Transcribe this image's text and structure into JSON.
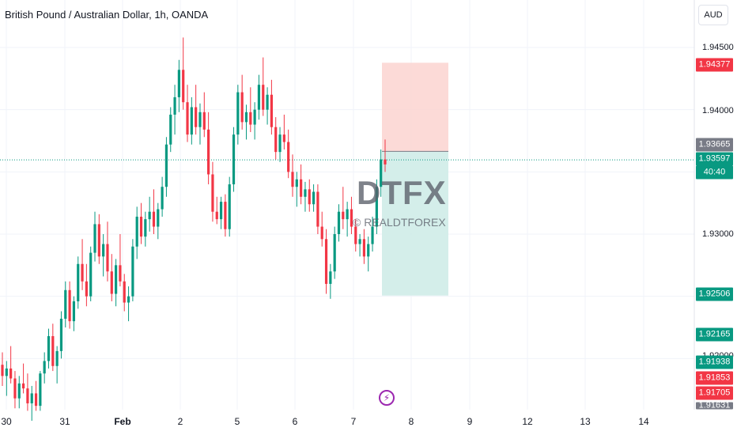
{
  "header": {
    "title": "British Pound / Australian Dollar, 1h, OANDA",
    "currency": "AUD"
  },
  "watermark": {
    "text": "DTFX",
    "subtext": "© REALDTFOREX"
  },
  "colors": {
    "up": "#089981",
    "down": "#f23645",
    "stop_zone": "#fbd4d0",
    "target_zone": "#cfece8",
    "current_line": "#089981",
    "accent_logo": "#9c27b0"
  },
  "price_axis": {
    "ticks": [
      "1.94500",
      "1.94000",
      "1.93000",
      "1.92000"
    ],
    "badges": [
      {
        "value": "1.94377",
        "color": "#f23645"
      },
      {
        "value": "1.93665",
        "color": "#787b86"
      },
      {
        "value": "1.93597",
        "color": "#089981"
      },
      {
        "value": "40:40",
        "color": "#089981"
      },
      {
        "value": "1.92506",
        "color": "#089981"
      },
      {
        "value": "1.92165",
        "color": "#089981"
      },
      {
        "value": "1.91938",
        "color": "#089981"
      },
      {
        "value": "1.91853",
        "color": "#f23645"
      },
      {
        "value": "1.91705",
        "color": "#f23645"
      },
      {
        "value": "1.91631",
        "color": "#787b86"
      }
    ]
  },
  "time_axis": {
    "ticks": [
      "30",
      "31",
      "Feb",
      "2",
      "5",
      "6",
      "7",
      "8",
      "9",
      "12",
      "13",
      "14"
    ]
  },
  "chart_data": {
    "type": "candlestick",
    "symbol": "GBPAUD",
    "timeframe": "1h",
    "ylim": [
      1.9145,
      1.9475
    ],
    "current_price": 1.93597,
    "position": {
      "side": "short",
      "entry": 1.93665,
      "stop": 1.94377,
      "target": 1.92506
    },
    "candles": [
      [
        1.9195,
        1.9205,
        1.9178,
        1.9186
      ],
      [
        1.9186,
        1.9198,
        1.917,
        1.9192
      ],
      [
        1.9192,
        1.921,
        1.918,
        1.9184
      ],
      [
        1.9184,
        1.919,
        1.916,
        1.9168
      ],
      [
        1.9168,
        1.9186,
        1.916,
        1.918
      ],
      [
        1.918,
        1.9196,
        1.9172,
        1.9176
      ],
      [
        1.9176,
        1.9188,
        1.9158,
        1.9164
      ],
      [
        1.9164,
        1.9178,
        1.915,
        1.9172
      ],
      [
        1.9172,
        1.9182,
        1.9158,
        1.9162
      ],
      [
        1.9162,
        1.919,
        1.9158,
        1.9188
      ],
      [
        1.9188,
        1.9205,
        1.918,
        1.9198
      ],
      [
        1.9198,
        1.9224,
        1.9192,
        1.9218
      ],
      [
        1.9218,
        1.9228,
        1.919,
        1.9194
      ],
      [
        1.9194,
        1.921,
        1.918,
        1.9206
      ],
      [
        1.9206,
        1.9238,
        1.92,
        1.9232
      ],
      [
        1.9232,
        1.9262,
        1.9225,
        1.9255
      ],
      [
        1.9255,
        1.9262,
        1.9224,
        1.923
      ],
      [
        1.923,
        1.925,
        1.9222,
        1.9246
      ],
      [
        1.9246,
        1.9282,
        1.924,
        1.9276
      ],
      [
        1.9276,
        1.9296,
        1.9255,
        1.9262
      ],
      [
        1.9262,
        1.9276,
        1.9242,
        1.925
      ],
      [
        1.925,
        1.929,
        1.9246,
        1.9285
      ],
      [
        1.9285,
        1.9318,
        1.9278,
        1.9308
      ],
      [
        1.9308,
        1.9316,
        1.9276,
        1.9282
      ],
      [
        1.9282,
        1.93,
        1.9266,
        1.9292
      ],
      [
        1.9292,
        1.931,
        1.9262,
        1.927
      ],
      [
        1.927,
        1.9284,
        1.9246,
        1.9252
      ],
      [
        1.9252,
        1.928,
        1.9242,
        1.9275
      ],
      [
        1.9275,
        1.93,
        1.9258,
        1.9262
      ],
      [
        1.9262,
        1.9268,
        1.9238,
        1.9245
      ],
      [
        1.9245,
        1.9258,
        1.923,
        1.925
      ],
      [
        1.925,
        1.9296,
        1.9246,
        1.929
      ],
      [
        1.929,
        1.9322,
        1.928,
        1.9314
      ],
      [
        1.9314,
        1.9325,
        1.9292,
        1.9298
      ],
      [
        1.9298,
        1.9318,
        1.929,
        1.9312
      ],
      [
        1.9312,
        1.933,
        1.9302,
        1.9318
      ],
      [
        1.9318,
        1.9336,
        1.93,
        1.9306
      ],
      [
        1.9306,
        1.9325,
        1.9296,
        1.932
      ],
      [
        1.932,
        1.9346,
        1.9314,
        1.9338
      ],
      [
        1.9338,
        1.9378,
        1.933,
        1.9372
      ],
      [
        1.9372,
        1.9402,
        1.9366,
        1.9396
      ],
      [
        1.9396,
        1.942,
        1.938,
        1.941
      ],
      [
        1.941,
        1.944,
        1.9398,
        1.9432
      ],
      [
        1.9432,
        1.9458,
        1.94,
        1.9406
      ],
      [
        1.9406,
        1.942,
        1.9374,
        1.938
      ],
      [
        1.938,
        1.941,
        1.9372,
        1.9402
      ],
      [
        1.9402,
        1.942,
        1.938,
        1.9386
      ],
      [
        1.9386,
        1.9405,
        1.9372,
        1.9398
      ],
      [
        1.9398,
        1.9414,
        1.9378,
        1.9384
      ],
      [
        1.9384,
        1.9398,
        1.934,
        1.9348
      ],
      [
        1.9348,
        1.9358,
        1.931,
        1.9318
      ],
      [
        1.9318,
        1.933,
        1.9308,
        1.9312
      ],
      [
        1.9312,
        1.933,
        1.9304,
        1.9326
      ],
      [
        1.9326,
        1.9332,
        1.9298,
        1.9304
      ],
      [
        1.9304,
        1.9346,
        1.9298,
        1.934
      ],
      [
        1.934,
        1.9386,
        1.9334,
        1.938
      ],
      [
        1.938,
        1.942,
        1.9372,
        1.9414
      ],
      [
        1.9414,
        1.9428,
        1.9384,
        1.939
      ],
      [
        1.939,
        1.9404,
        1.9376,
        1.9398
      ],
      [
        1.9398,
        1.9418,
        1.9382,
        1.9388
      ],
      [
        1.9388,
        1.9406,
        1.9376,
        1.94
      ],
      [
        1.94,
        1.9428,
        1.9392,
        1.942
      ],
      [
        1.942,
        1.9442,
        1.9395,
        1.94
      ],
      [
        1.94,
        1.9418,
        1.9388,
        1.9412
      ],
      [
        1.9412,
        1.9424,
        1.938,
        1.9386
      ],
      [
        1.9386,
        1.9394,
        1.936,
        1.9366
      ],
      [
        1.9366,
        1.9386,
        1.9358,
        1.938
      ],
      [
        1.938,
        1.9396,
        1.9368,
        1.9374
      ],
      [
        1.9374,
        1.9384,
        1.9345,
        1.935
      ],
      [
        1.935,
        1.9364,
        1.933,
        1.9338
      ],
      [
        1.9338,
        1.935,
        1.9322,
        1.9344
      ],
      [
        1.9344,
        1.9356,
        1.9324,
        1.933
      ],
      [
        1.933,
        1.9342,
        1.9318,
        1.9336
      ],
      [
        1.9336,
        1.9344,
        1.9318,
        1.9324
      ],
      [
        1.9324,
        1.934,
        1.9318,
        1.9334
      ],
      [
        1.9334,
        1.934,
        1.93,
        1.9306
      ],
      [
        1.9306,
        1.9318,
        1.929,
        1.9296
      ],
      [
        1.9296,
        1.9304,
        1.9252,
        1.926
      ],
      [
        1.926,
        1.9276,
        1.9248,
        1.927
      ],
      [
        1.927,
        1.9306,
        1.9264,
        1.93
      ],
      [
        1.93,
        1.9324,
        1.9294,
        1.9318
      ],
      [
        1.9318,
        1.9338,
        1.9304,
        1.9312
      ],
      [
        1.9312,
        1.9326,
        1.9298,
        1.932
      ],
      [
        1.932,
        1.933,
        1.93,
        1.9306
      ],
      [
        1.9306,
        1.9312,
        1.9286,
        1.9292
      ],
      [
        1.9292,
        1.93,
        1.9282,
        1.9296
      ],
      [
        1.9296,
        1.9304,
        1.9276,
        1.9282
      ],
      [
        1.9282,
        1.9298,
        1.927,
        1.9292
      ],
      [
        1.9292,
        1.9314,
        1.9286,
        1.9306
      ],
      [
        1.9306,
        1.9344,
        1.93,
        1.9338
      ],
      [
        1.9338,
        1.9368,
        1.933,
        1.936
      ],
      [
        1.936,
        1.9376,
        1.935,
        1.9356
      ]
    ]
  }
}
